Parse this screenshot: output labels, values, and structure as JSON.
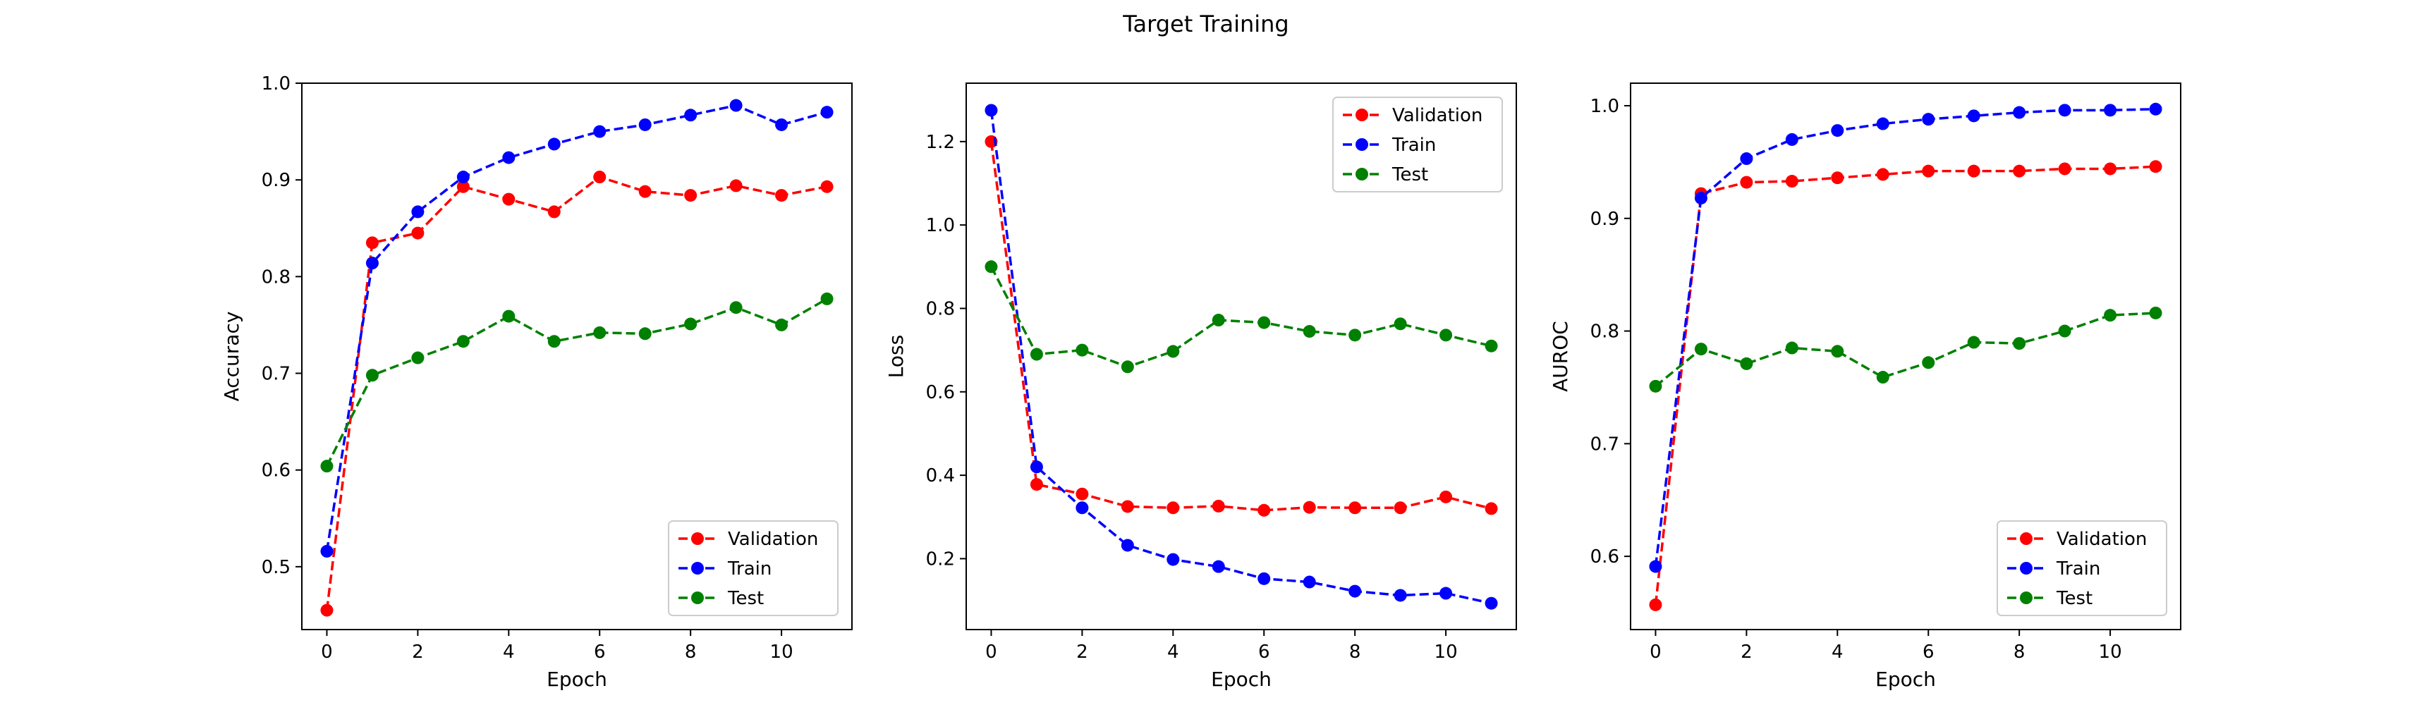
{
  "figure_title": "Target Training",
  "chart_data": [
    {
      "type": "line",
      "xlabel": "Epoch",
      "ylabel": "Accuracy",
      "xlim": [
        -0.55,
        11.55
      ],
      "ylim": [
        0.435,
        1.0
      ],
      "xticks": [
        0,
        2,
        4,
        6,
        8,
        10
      ],
      "xtick_labels": [
        "0",
        "2",
        "4",
        "6",
        "8",
        "10"
      ],
      "yticks": [
        0.5,
        0.6,
        0.7,
        0.8,
        0.9,
        1.0
      ],
      "ytick_labels": [
        "0.5",
        "0.6",
        "0.7",
        "0.8",
        "0.9",
        "1.0"
      ],
      "legend_position": "lower right",
      "grid": false,
      "x": [
        0,
        1,
        2,
        3,
        4,
        5,
        6,
        7,
        8,
        9,
        10,
        11
      ],
      "series": [
        {
          "name": "Validation",
          "color": "#ff0000",
          "values": [
            0.455,
            0.835,
            0.845,
            0.893,
            0.88,
            0.867,
            0.903,
            0.888,
            0.884,
            0.894,
            0.884,
            0.893
          ]
        },
        {
          "name": "Train",
          "color": "#0000ff",
          "values": [
            0.516,
            0.814,
            0.867,
            0.903,
            0.923,
            0.937,
            0.95,
            0.957,
            0.967,
            0.977,
            0.957,
            0.97
          ]
        },
        {
          "name": "Test",
          "color": "#008000",
          "values": [
            0.604,
            0.698,
            0.716,
            0.733,
            0.759,
            0.733,
            0.742,
            0.741,
            0.751,
            0.768,
            0.75,
            0.777
          ]
        }
      ]
    },
    {
      "type": "line",
      "xlabel": "Epoch",
      "ylabel": "Loss",
      "xlim": [
        -0.55,
        11.55
      ],
      "ylim": [
        0.03,
        1.34
      ],
      "xticks": [
        0,
        2,
        4,
        6,
        8,
        10
      ],
      "xtick_labels": [
        "0",
        "2",
        "4",
        "6",
        "8",
        "10"
      ],
      "yticks": [
        0.2,
        0.4,
        0.6,
        0.8,
        1.0,
        1.2
      ],
      "ytick_labels": [
        "0.2",
        "0.4",
        "0.6",
        "0.8",
        "1.0",
        "1.2"
      ],
      "legend_position": "upper right",
      "grid": false,
      "x": [
        0,
        1,
        2,
        3,
        4,
        5,
        6,
        7,
        8,
        9,
        10,
        11
      ],
      "series": [
        {
          "name": "Validation",
          "color": "#ff0000",
          "values": [
            1.2,
            0.378,
            0.355,
            0.325,
            0.322,
            0.326,
            0.316,
            0.323,
            0.322,
            0.322,
            0.348,
            0.32
          ]
        },
        {
          "name": "Train",
          "color": "#0000ff",
          "values": [
            1.275,
            0.42,
            0.322,
            0.232,
            0.198,
            0.181,
            0.152,
            0.144,
            0.122,
            0.112,
            0.117,
            0.093
          ]
        },
        {
          "name": "Test",
          "color": "#008000",
          "values": [
            0.9,
            0.69,
            0.7,
            0.66,
            0.697,
            0.772,
            0.766,
            0.745,
            0.736,
            0.763,
            0.736,
            0.71
          ]
        }
      ]
    },
    {
      "type": "line",
      "xlabel": "Epoch",
      "ylabel": "AUROC",
      "xlim": [
        -0.55,
        11.55
      ],
      "ylim": [
        0.535,
        1.02
      ],
      "xticks": [
        0,
        2,
        4,
        6,
        8,
        10
      ],
      "xtick_labels": [
        "0",
        "2",
        "4",
        "6",
        "8",
        "10"
      ],
      "yticks": [
        0.6,
        0.7,
        0.8,
        0.9,
        1.0
      ],
      "ytick_labels": [
        "0.6",
        "0.7",
        "0.8",
        "0.9",
        "1.0"
      ],
      "legend_position": "lower right",
      "grid": false,
      "x": [
        0,
        1,
        2,
        3,
        4,
        5,
        6,
        7,
        8,
        9,
        10,
        11
      ],
      "series": [
        {
          "name": "Validation",
          "color": "#ff0000",
          "values": [
            0.557,
            0.922,
            0.932,
            0.933,
            0.936,
            0.939,
            0.942,
            0.942,
            0.942,
            0.944,
            0.944,
            0.946
          ]
        },
        {
          "name": "Train",
          "color": "#0000ff",
          "values": [
            0.591,
            0.918,
            0.953,
            0.97,
            0.978,
            0.984,
            0.988,
            0.991,
            0.994,
            0.996,
            0.996,
            0.997
          ]
        },
        {
          "name": "Test",
          "color": "#008000",
          "values": [
            0.751,
            0.784,
            0.771,
            0.785,
            0.782,
            0.759,
            0.772,
            0.79,
            0.789,
            0.8,
            0.814,
            0.816
          ]
        }
      ]
    }
  ]
}
